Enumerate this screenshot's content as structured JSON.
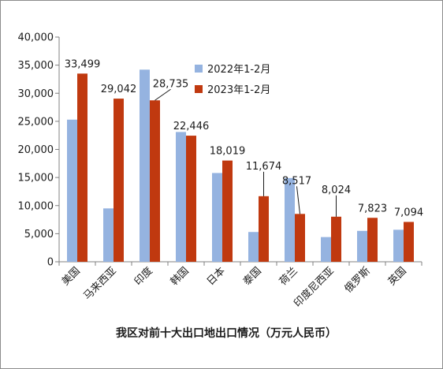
{
  "chart_data": {
    "type": "bar",
    "title": "我区对前十大出口地出口情况（万元人民币）",
    "categories": [
      "美国",
      "马来西亚",
      "印度",
      "韩国",
      "日本",
      "泰国",
      "荷兰",
      "印度尼西亚",
      "俄罗斯",
      "英国"
    ],
    "series": [
      {
        "name": "2022年1-2月",
        "color": "#95b3e0",
        "values": [
          25300,
          9500,
          34200,
          23100,
          15800,
          5300,
          14900,
          4400,
          5500,
          5700
        ]
      },
      {
        "name": "2023年1-2月",
        "color": "#c0390f",
        "values": [
          33499,
          29042,
          28735,
          22446,
          18019,
          11674,
          8517,
          8024,
          7823,
          7094
        ]
      }
    ],
    "data_labels": [
      "33,499",
      "29,042",
      "28,735",
      "22,446",
      "18,019",
      "11,674",
      "8,517",
      "8,024",
      "7,823",
      "7,094"
    ],
    "ylim": [
      0,
      40000
    ],
    "yticks": [
      0,
      5000,
      10000,
      15000,
      20000,
      25000,
      30000,
      35000,
      40000
    ],
    "ytick_labels": [
      "0",
      "5,000",
      "10,000",
      "15,000",
      "20,000",
      "25,000",
      "30,000",
      "35,000",
      "40,000"
    ],
    "legend_position": "top-right",
    "grid": false
  }
}
